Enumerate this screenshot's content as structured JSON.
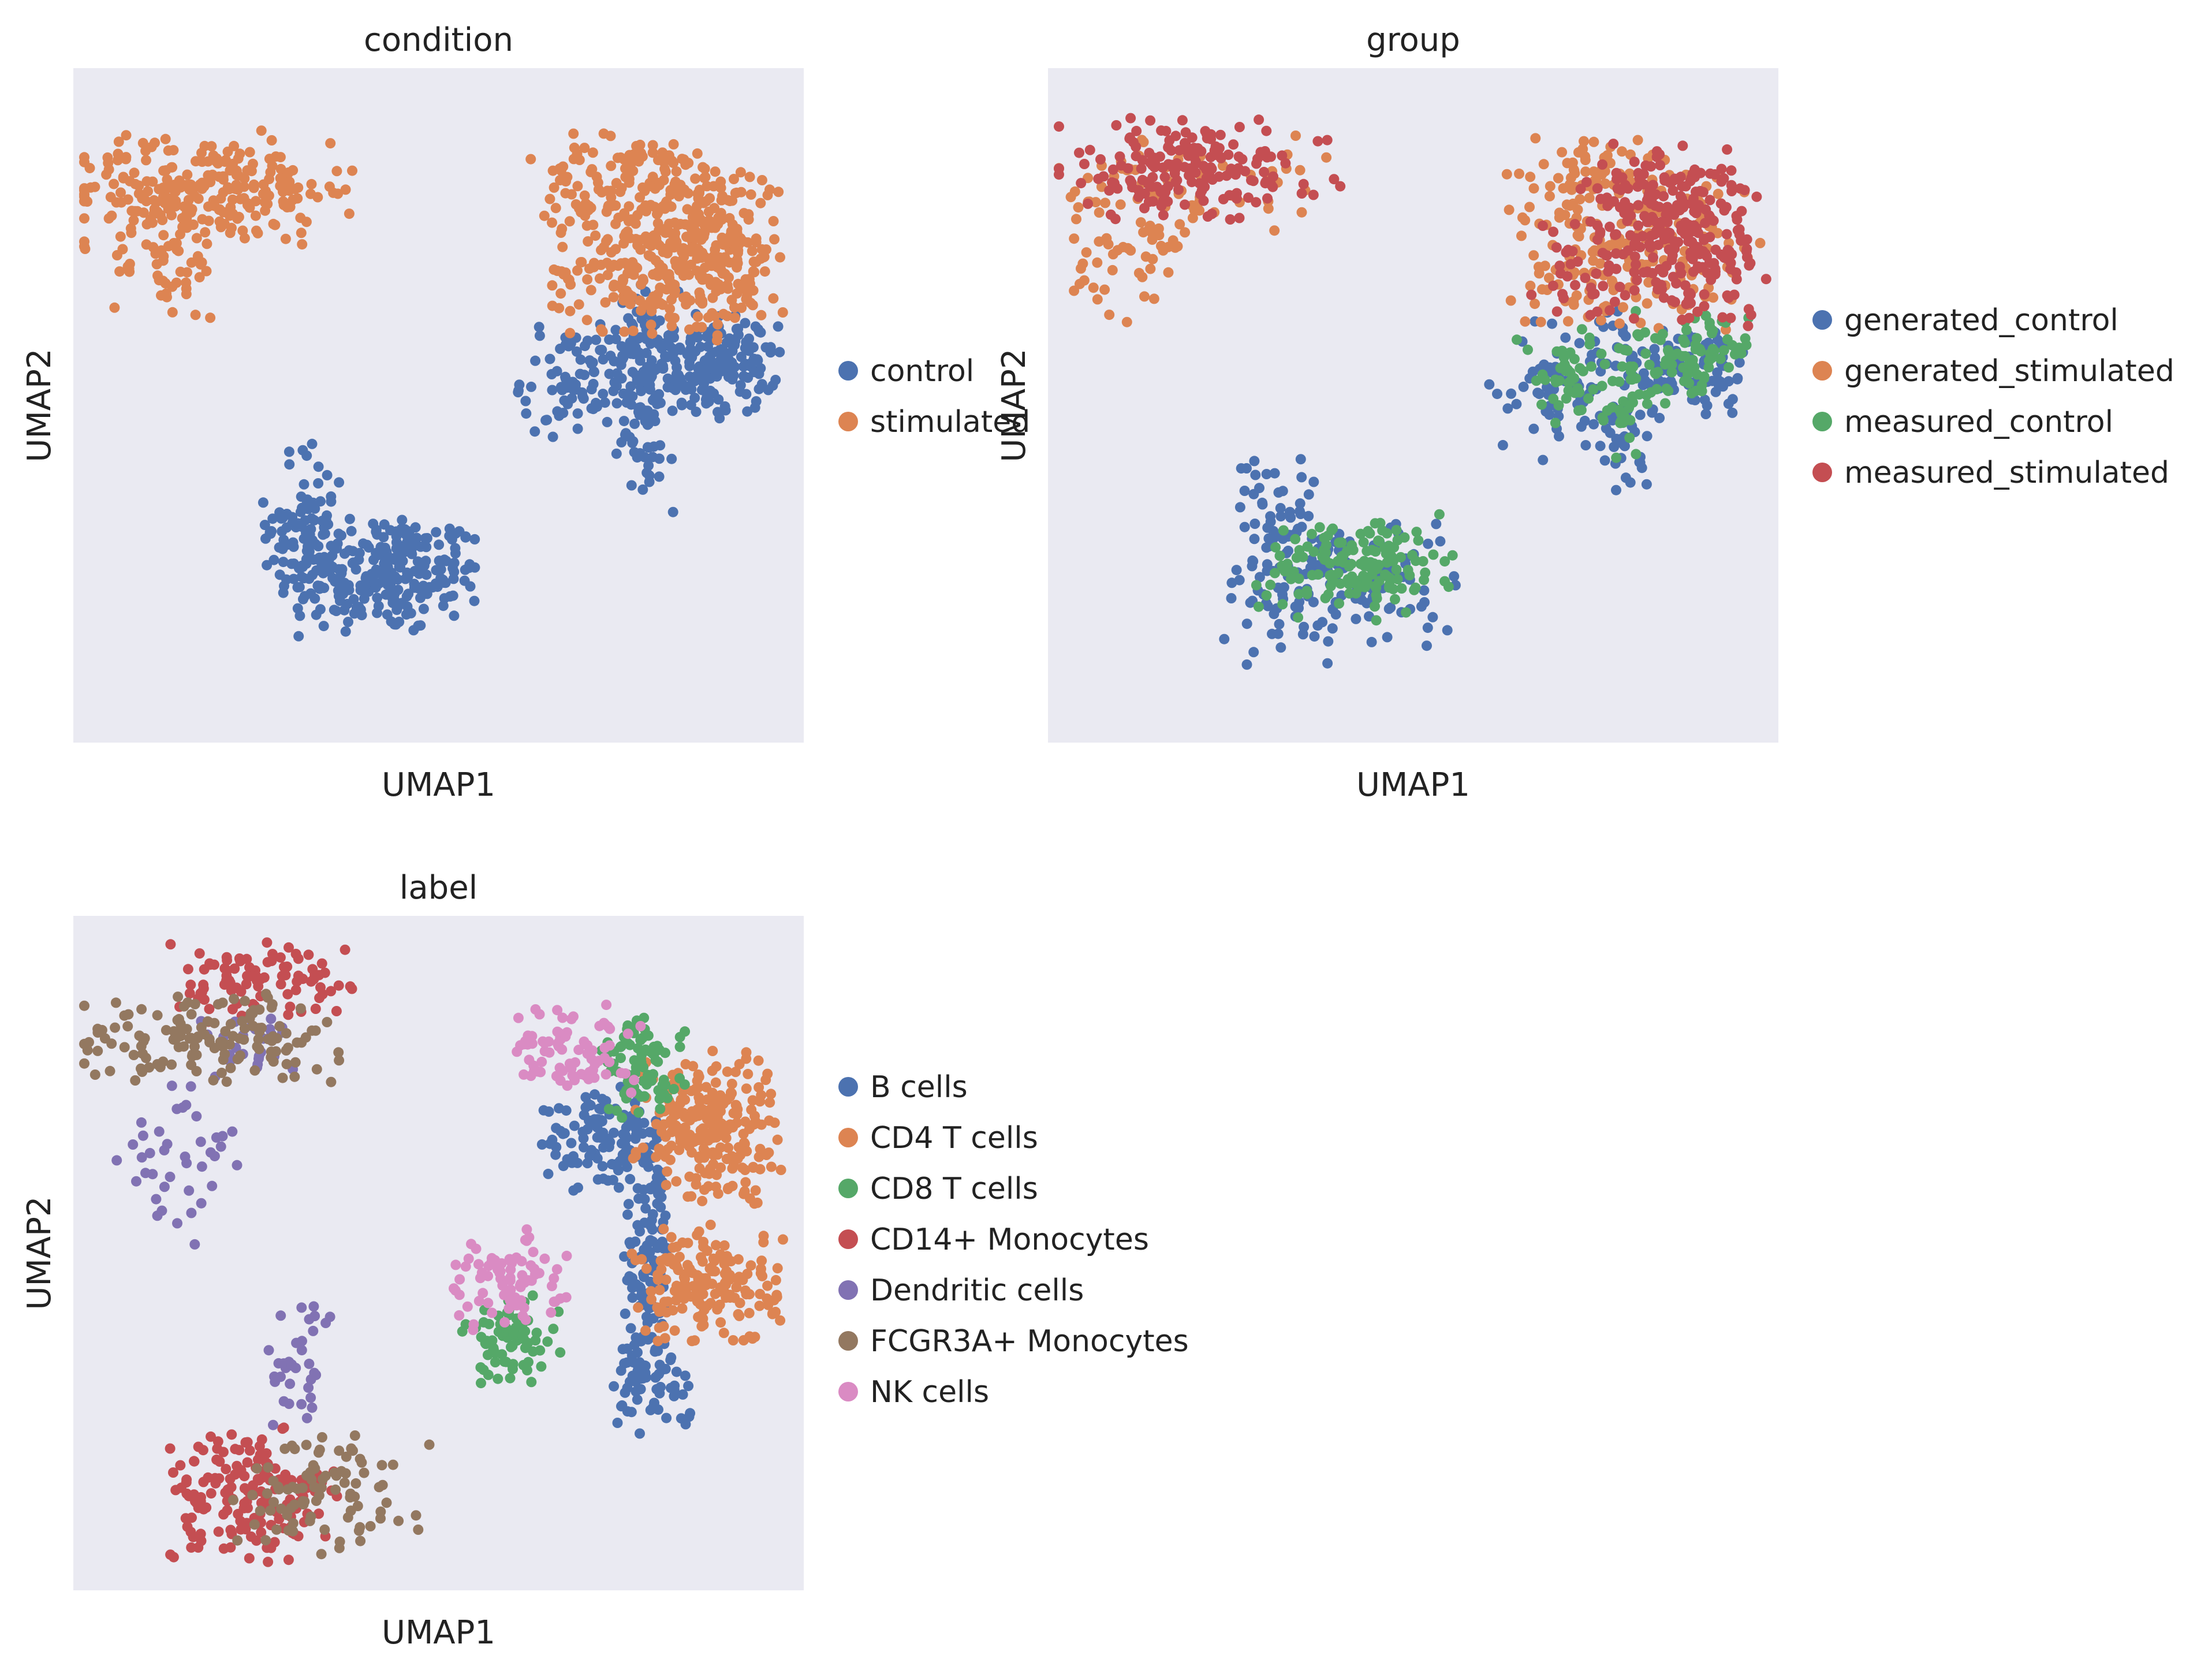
{
  "figure": {
    "background": "#ffffff",
    "panel_background": "#eaeaf2"
  },
  "chart_data": [
    {
      "type": "scatter",
      "title": "condition",
      "xlabel": "UMAP1",
      "ylabel": "UMAP2",
      "grid": false,
      "legend_position": "right",
      "ticks": "none",
      "categories": [
        "control",
        "stimulated"
      ],
      "colors": [
        "#4c72b0",
        "#dd8452"
      ],
      "legend_labels": [
        "control",
        "stimulated"
      ],
      "note_points": "UMAP cell embeddings; each cell colored by category",
      "series": [
        {
          "name": "control",
          "clusters": [
            {
              "cx": 4.2,
              "cy": 2.5,
              "rx": 0.9,
              "ry": 0.55,
              "n": 260
            },
            {
              "cx": 3.2,
              "cy": 3.3,
              "rx": 0.35,
              "ry": 0.7,
              "n": 70
            },
            {
              "cx": 7.1,
              "cy": 5.4,
              "rx": 0.6,
              "ry": 0.55,
              "n": 110
            },
            {
              "cx": 7.85,
              "cy": 5.1,
              "rx": 0.25,
              "ry": 1.0,
              "n": 90
            },
            {
              "cx": 8.75,
              "cy": 5.6,
              "rx": 0.55,
              "ry": 0.45,
              "n": 170
            }
          ]
        },
        {
          "name": "stimulated",
          "clusters": [
            {
              "cx": 1.8,
              "cy": 8.2,
              "rx": 1.3,
              "ry": 0.5,
              "n": 230
            },
            {
              "cx": 1.3,
              "cy": 7.2,
              "rx": 0.5,
              "ry": 0.6,
              "n": 60
            },
            {
              "cx": 7.7,
              "cy": 8.2,
              "rx": 0.9,
              "ry": 0.5,
              "n": 150
            },
            {
              "cx": 7.7,
              "cy": 7.0,
              "rx": 0.7,
              "ry": 0.55,
              "n": 140
            },
            {
              "cx": 8.8,
              "cy": 7.3,
              "rx": 0.55,
              "ry": 0.8,
              "n": 220
            }
          ]
        }
      ]
    },
    {
      "type": "scatter",
      "title": "group",
      "xlabel": "UMAP1",
      "ylabel": "UMAP2",
      "grid": false,
      "legend_position": "right",
      "ticks": "none",
      "categories": [
        "generated_control",
        "generated_stimulated",
        "measured_control",
        "measured_stimulated"
      ],
      "colors": [
        "#4c72b0",
        "#dd8452",
        "#55a868",
        "#c44e52"
      ],
      "legend_labels": [
        "generated_control",
        "generated_stimulated",
        "measured_control",
        "measured_stimulated"
      ],
      "series": [
        {
          "name": "generated_control",
          "clusters": [
            {
              "cx": 4.0,
              "cy": 2.3,
              "rx": 1.0,
              "ry": 0.65,
              "n": 130
            },
            {
              "cx": 3.1,
              "cy": 3.4,
              "rx": 0.35,
              "ry": 0.6,
              "n": 50
            },
            {
              "cx": 7.0,
              "cy": 5.3,
              "rx": 0.55,
              "ry": 0.65,
              "n": 60
            },
            {
              "cx": 7.85,
              "cy": 5.0,
              "rx": 0.25,
              "ry": 1.0,
              "n": 50
            },
            {
              "cx": 8.8,
              "cy": 5.5,
              "rx": 0.5,
              "ry": 0.45,
              "n": 90
            }
          ]
        },
        {
          "name": "generated_stimulated",
          "clusters": [
            {
              "cx": 1.2,
              "cy": 7.2,
              "rx": 0.55,
              "ry": 0.6,
              "n": 50
            },
            {
              "cx": 1.9,
              "cy": 8.3,
              "rx": 1.2,
              "ry": 0.45,
              "n": 60
            },
            {
              "cx": 7.5,
              "cy": 8.3,
              "rx": 0.8,
              "ry": 0.45,
              "n": 90
            },
            {
              "cx": 7.5,
              "cy": 7.0,
              "rx": 0.7,
              "ry": 0.55,
              "n": 90
            },
            {
              "cx": 8.9,
              "cy": 7.4,
              "rx": 0.5,
              "ry": 0.8,
              "n": 60
            }
          ]
        },
        {
          "name": "measured_control",
          "clusters": [
            {
              "cx": 4.2,
              "cy": 2.6,
              "rx": 0.8,
              "ry": 0.45,
              "n": 150
            },
            {
              "cx": 7.2,
              "cy": 5.4,
              "rx": 0.45,
              "ry": 0.45,
              "n": 50
            },
            {
              "cx": 8.8,
              "cy": 5.7,
              "rx": 0.5,
              "ry": 0.4,
              "n": 80
            },
            {
              "cx": 7.95,
              "cy": 5.2,
              "rx": 0.2,
              "ry": 0.7,
              "n": 30
            }
          ]
        },
        {
          "name": "measured_stimulated",
          "clusters": [
            {
              "cx": 1.9,
              "cy": 8.5,
              "rx": 1.2,
              "ry": 0.45,
              "n": 180
            },
            {
              "cx": 8.3,
              "cy": 8.1,
              "rx": 0.6,
              "ry": 0.45,
              "n": 90
            },
            {
              "cx": 8.9,
              "cy": 7.3,
              "rx": 0.55,
              "ry": 0.7,
              "n": 150
            },
            {
              "cx": 7.6,
              "cy": 7.0,
              "rx": 0.6,
              "ry": 0.45,
              "n": 60
            }
          ]
        }
      ]
    },
    {
      "type": "scatter",
      "title": "label",
      "xlabel": "UMAP1",
      "ylabel": "UMAP2",
      "grid": false,
      "legend_position": "right",
      "ticks": "none",
      "categories": [
        "B cells",
        "CD4 T cells",
        "CD8 T cells",
        "CD14+ Monocytes",
        "Dendritic cells",
        "FCGR3A+ Monocytes",
        "NK cells"
      ],
      "colors": [
        "#4c72b0",
        "#dd8452",
        "#55a868",
        "#c44e52",
        "#8172b3",
        "#937860",
        "#da8bc3"
      ],
      "legend_labels": [
        "B cells",
        "CD4 T cells",
        "CD8 T cells",
        "CD14+ Monocytes",
        "Dendritic cells",
        "FCGR3A+ Monocytes",
        "NK cells"
      ],
      "series": [
        {
          "name": "B cells",
          "clusters": [
            {
              "cx": 7.3,
              "cy": 6.7,
              "rx": 0.55,
              "ry": 0.45,
              "n": 110
            },
            {
              "cx": 7.85,
              "cy": 5.0,
              "rx": 0.22,
              "ry": 1.2,
              "n": 110
            },
            {
              "cx": 7.9,
              "cy": 3.0,
              "rx": 0.35,
              "ry": 0.4,
              "n": 60
            }
          ]
        },
        {
          "name": "CD4 T cells",
          "clusters": [
            {
              "cx": 8.7,
              "cy": 6.9,
              "rx": 0.6,
              "ry": 0.7,
              "n": 230
            },
            {
              "cx": 8.7,
              "cy": 4.5,
              "rx": 0.6,
              "ry": 0.55,
              "n": 170
            }
          ]
        },
        {
          "name": "CD8 T cells",
          "clusters": [
            {
              "cx": 7.8,
              "cy": 7.7,
              "rx": 0.35,
              "ry": 0.45,
              "n": 80
            },
            {
              "cx": 6.0,
              "cy": 3.7,
              "rx": 0.4,
              "ry": 0.4,
              "n": 70
            }
          ]
        },
        {
          "name": "CD14+ Monocytes",
          "clusters": [
            {
              "cx": 2.5,
              "cy": 9.0,
              "rx": 0.8,
              "ry": 0.35,
              "n": 90
            },
            {
              "cx": 2.4,
              "cy": 1.4,
              "rx": 0.75,
              "ry": 0.6,
              "n": 170
            }
          ]
        },
        {
          "name": "Dendritic cells",
          "clusters": [
            {
              "cx": 1.5,
              "cy": 6.3,
              "rx": 0.55,
              "ry": 0.8,
              "n": 40
            },
            {
              "cx": 3.1,
              "cy": 3.4,
              "rx": 0.35,
              "ry": 0.6,
              "n": 35
            },
            {
              "cx": 2.4,
              "cy": 8.1,
              "rx": 0.4,
              "ry": 0.3,
              "n": 25
            }
          ]
        },
        {
          "name": "FCGR3A+ Monocytes",
          "clusters": [
            {
              "cx": 1.8,
              "cy": 8.2,
              "rx": 1.2,
              "ry": 0.4,
              "n": 140
            },
            {
              "cx": 3.5,
              "cy": 1.5,
              "rx": 0.8,
              "ry": 0.55,
              "n": 90
            }
          ]
        },
        {
          "name": "NK cells",
          "clusters": [
            {
              "cx": 6.8,
              "cy": 8.0,
              "rx": 0.55,
              "ry": 0.4,
              "n": 80
            },
            {
              "cx": 5.9,
              "cy": 4.6,
              "rx": 0.5,
              "ry": 0.45,
              "n": 80
            }
          ]
        }
      ]
    }
  ]
}
